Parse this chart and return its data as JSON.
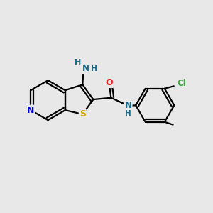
{
  "background_color": "#e8e8e8",
  "atom_colors": {
    "N": "#1a6b8a",
    "O": "#dd2222",
    "S": "#ccaa00",
    "Cl": "#33aa33",
    "C": "#000000",
    "H": "#1a6b8a"
  },
  "bond_color": "#000000",
  "bond_width": 1.6,
  "figsize": [
    3.0,
    3.0
  ],
  "dpi": 100
}
